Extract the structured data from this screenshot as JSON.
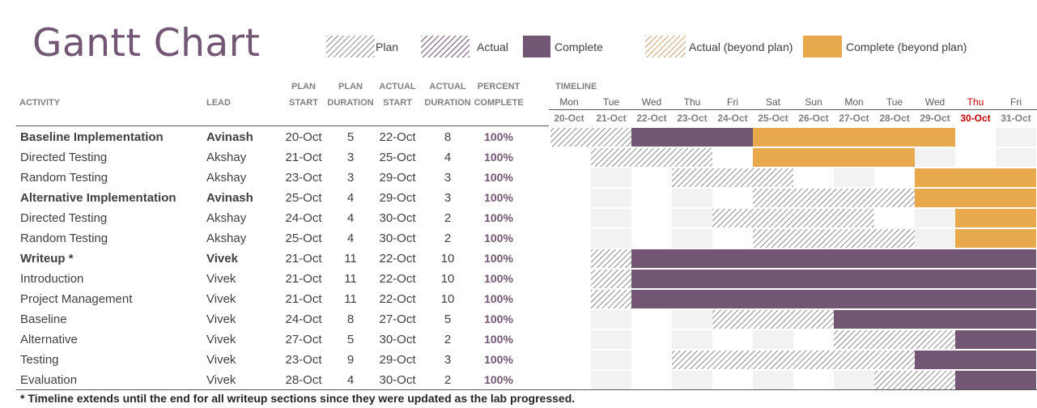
{
  "title": "Gantt Chart",
  "legend": [
    {
      "key": "plan",
      "label": "Plan"
    },
    {
      "key": "actual",
      "label": "Actual"
    },
    {
      "key": "complete",
      "label": "Complete"
    },
    {
      "key": "actual_beyond",
      "label": "Actual (beyond plan)"
    },
    {
      "key": "complete_beyond",
      "label": "Complete (beyond plan)"
    }
  ],
  "colors": {
    "complete": "#735673",
    "complete_beyond": "#e8a94d",
    "plan_hatch": "#595959",
    "actual_hatch": "#735673",
    "actual_beyond_hatch": "#c07a3a",
    "row_shade": "#f2f2f2",
    "today": "#c00000"
  },
  "headers": {
    "activity": "ACTIVITY",
    "lead": "LEAD",
    "plan_start": [
      "PLAN",
      "START"
    ],
    "plan_duration": [
      "PLAN",
      "DURATION"
    ],
    "actual_start": [
      "ACTUAL",
      "START"
    ],
    "actual_duration": [
      "ACTUAL",
      "DURATION"
    ],
    "percent_complete": [
      "PERCENT",
      "COMPLETE"
    ],
    "timeline": "TIMELINE"
  },
  "footnote": "* Timeline extends until the end for all writeup sections since they were updated as the lab progressed.",
  "chart_data": {
    "type": "table",
    "title": "Gantt Chart",
    "today": "30-Oct",
    "timeline_days": [
      {
        "day": "Mon",
        "date": "20-Oct"
      },
      {
        "day": "Tue",
        "date": "21-Oct"
      },
      {
        "day": "Wed",
        "date": "22-Oct"
      },
      {
        "day": "Thu",
        "date": "23-Oct"
      },
      {
        "day": "Fri",
        "date": "24-Oct"
      },
      {
        "day": "Sat",
        "date": "25-Oct"
      },
      {
        "day": "Sun",
        "date": "26-Oct"
      },
      {
        "day": "Mon",
        "date": "27-Oct"
      },
      {
        "day": "Tue",
        "date": "28-Oct"
      },
      {
        "day": "Wed",
        "date": "29-Oct"
      },
      {
        "day": "Thu",
        "date": "30-Oct"
      },
      {
        "day": "Fri",
        "date": "31-Oct"
      }
    ],
    "activities": [
      {
        "activity": "Baseline Implementation",
        "lead": "Avinash",
        "plan_start": "20-Oct",
        "plan_duration": 5,
        "actual_start": "22-Oct",
        "actual_duration": 8,
        "percent_complete": "100%",
        "bold": true
      },
      {
        "activity": "Directed Testing",
        "lead": "Akshay",
        "plan_start": "21-Oct",
        "plan_duration": 3,
        "actual_start": "25-Oct",
        "actual_duration": 4,
        "percent_complete": "100%",
        "bold": false
      },
      {
        "activity": "Random Testing",
        "lead": "Akshay",
        "plan_start": "23-Oct",
        "plan_duration": 3,
        "actual_start": "29-Oct",
        "actual_duration": 3,
        "percent_complete": "100%",
        "bold": false
      },
      {
        "activity": "Alternative Implementation",
        "lead": "Avinash",
        "plan_start": "25-Oct",
        "plan_duration": 4,
        "actual_start": "29-Oct",
        "actual_duration": 3,
        "percent_complete": "100%",
        "bold": true
      },
      {
        "activity": "Directed Testing",
        "lead": "Akshay",
        "plan_start": "24-Oct",
        "plan_duration": 4,
        "actual_start": "30-Oct",
        "actual_duration": 2,
        "percent_complete": "100%",
        "bold": false
      },
      {
        "activity": "Random Testing",
        "lead": "Akshay",
        "plan_start": "25-Oct",
        "plan_duration": 4,
        "actual_start": "30-Oct",
        "actual_duration": 2,
        "percent_complete": "100%",
        "bold": false
      },
      {
        "activity": "Writeup *",
        "lead": "Vivek",
        "plan_start": "21-Oct",
        "plan_duration": 11,
        "actual_start": "22-Oct",
        "actual_duration": 10,
        "percent_complete": "100%",
        "bold": true
      },
      {
        "activity": "Introduction",
        "lead": "Vivek",
        "plan_start": "21-Oct",
        "plan_duration": 11,
        "actual_start": "22-Oct",
        "actual_duration": 10,
        "percent_complete": "100%",
        "bold": false
      },
      {
        "activity": "Project Management",
        "lead": "Vivek",
        "plan_start": "21-Oct",
        "plan_duration": 11,
        "actual_start": "22-Oct",
        "actual_duration": 10,
        "percent_complete": "100%",
        "bold": false
      },
      {
        "activity": "Baseline",
        "lead": "Vivek",
        "plan_start": "24-Oct",
        "plan_duration": 8,
        "actual_start": "27-Oct",
        "actual_duration": 5,
        "percent_complete": "100%",
        "bold": false
      },
      {
        "activity": "Alternative",
        "lead": "Vivek",
        "plan_start": "27-Oct",
        "plan_duration": 5,
        "actual_start": "30-Oct",
        "actual_duration": 2,
        "percent_complete": "100%",
        "bold": false
      },
      {
        "activity": "Testing",
        "lead": "Vivek",
        "plan_start": "23-Oct",
        "plan_duration": 9,
        "actual_start": "29-Oct",
        "actual_duration": 3,
        "percent_complete": "100%",
        "bold": false
      },
      {
        "activity": "Evaluation",
        "lead": "Vivek",
        "plan_start": "28-Oct",
        "plan_duration": 4,
        "actual_start": "30-Oct",
        "actual_duration": 2,
        "percent_complete": "100%",
        "bold": false
      }
    ]
  }
}
